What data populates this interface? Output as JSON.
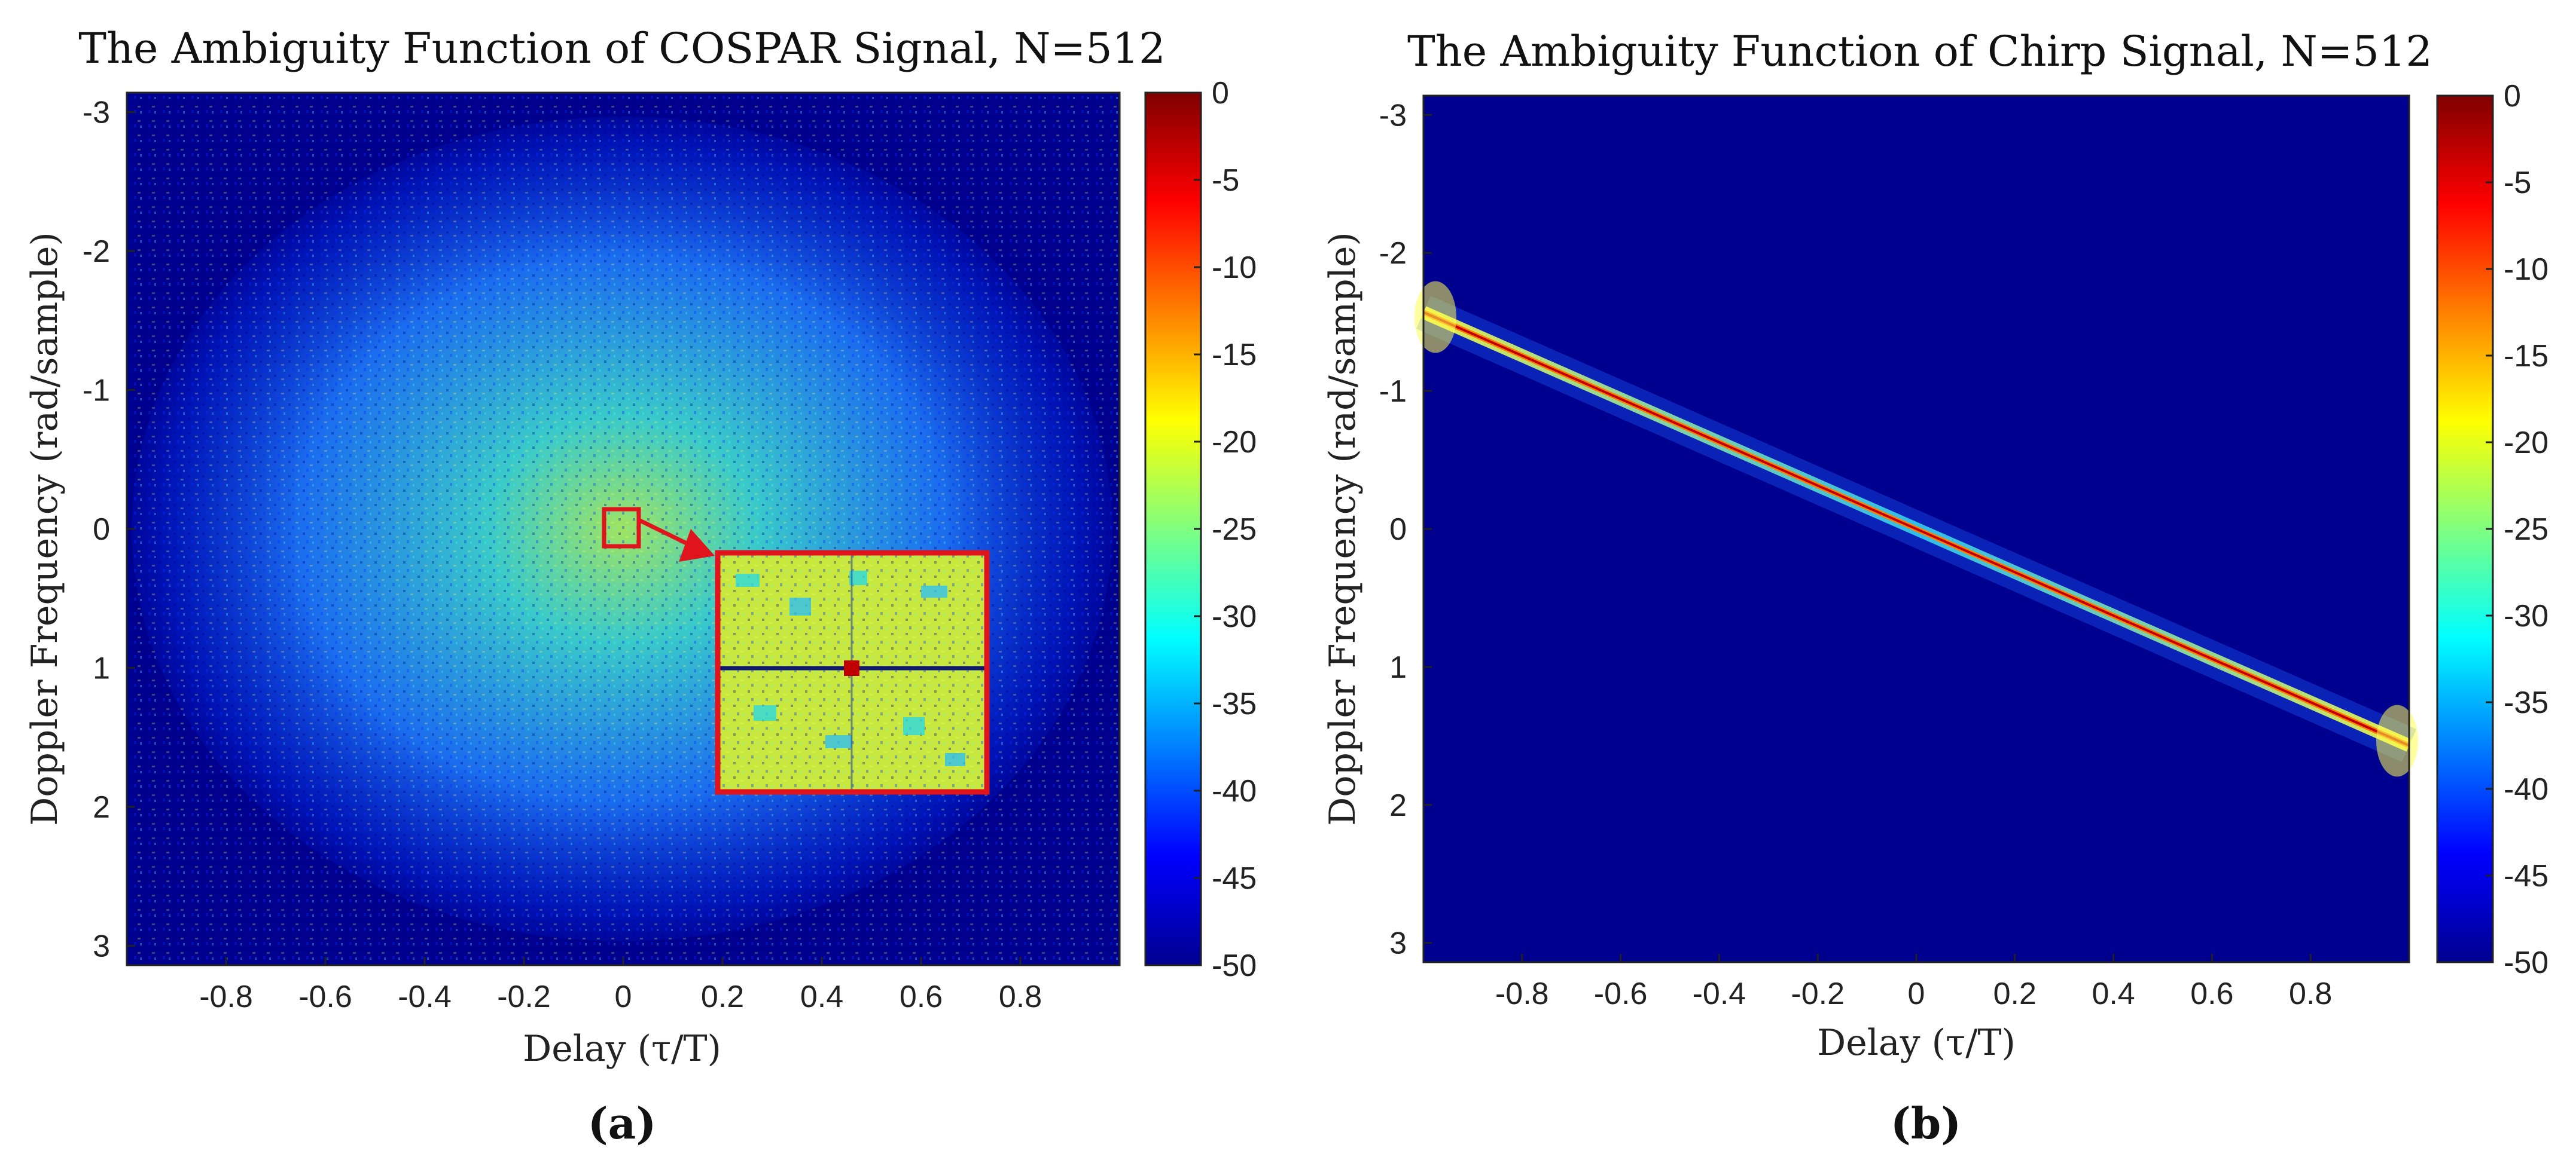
{
  "figure": {
    "panels": [
      {
        "title": "The Ambiguity Function of COSPAR Signal, N=512",
        "caption": "(a)",
        "colors": {
          "background": "#00008f",
          "inset_border": "#e0141c"
        }
      },
      {
        "title": "The Ambiguity Function of Chirp Signal, N=512",
        "caption": "(b)",
        "colors": {
          "background": "#00008f",
          "ridge": "#c00000"
        }
      }
    ]
  },
  "chart_data": [
    {
      "type": "heatmap",
      "title": "The Ambiguity Function of COSPAR Signal, N=512",
      "xlabel": "Delay (τ/T)",
      "ylabel": "Doppler Frequency (rad/sample)",
      "xlim": [
        -1,
        1
      ],
      "ylim": [
        -3.14,
        3.14
      ],
      "y_direction": "reversed",
      "xticks": [
        -0.8,
        -0.6,
        -0.4,
        -0.2,
        0,
        0.2,
        0.4,
        0.6,
        0.8
      ],
      "xtick_labels": [
        "-0.8",
        "-0.6",
        "-0.4",
        "-0.2",
        "0",
        "0.2",
        "0.4",
        "0.6",
        "0.8"
      ],
      "yticks": [
        -3,
        -2,
        -1,
        0,
        1,
        2,
        3
      ],
      "ytick_labels": [
        "-3",
        "-2",
        "-1",
        "0",
        "1",
        "2",
        "3"
      ],
      "colorbar": {
        "range": [
          -50,
          0
        ],
        "ticks": [
          0,
          -5,
          -10,
          -15,
          -20,
          -25,
          -30,
          -35,
          -40,
          -45,
          -50
        ],
        "tick_labels": [
          "0",
          "-5",
          "-10",
          "-15",
          "-20",
          "-25",
          "-30",
          "-35",
          "-40",
          "-45",
          "-50"
        ],
        "colormap": "jet"
      },
      "description": "thumbtack-like: sharp peak at (0,0) with noise-like sidelobes around -20 to -35 dB",
      "inset": {
        "zoom_center": [
          0,
          0
        ],
        "peak_dB": 0
      }
    },
    {
      "type": "heatmap",
      "title": "The Ambiguity Function of Chirp Signal, N=512",
      "xlabel": "Delay (τ/T)",
      "ylabel": "Doppler Frequency (rad/sample)",
      "xlim": [
        -1,
        1
      ],
      "ylim": [
        -3.14,
        3.14
      ],
      "y_direction": "reversed",
      "xticks": [
        -0.8,
        -0.6,
        -0.4,
        -0.2,
        0,
        0.2,
        0.4,
        0.6,
        0.8
      ],
      "xtick_labels": [
        "-0.8",
        "-0.6",
        "-0.4",
        "-0.2",
        "0",
        "0.2",
        "0.4",
        "0.6",
        "0.8"
      ],
      "yticks": [
        -3,
        -2,
        -1,
        0,
        1,
        2,
        3
      ],
      "ytick_labels": [
        "-3",
        "-2",
        "-1",
        "0",
        "1",
        "2",
        "3"
      ],
      "colorbar": {
        "range": [
          -50,
          0
        ],
        "ticks": [
          0,
          -5,
          -10,
          -15,
          -20,
          -25,
          -30,
          -35,
          -40,
          -45,
          -50
        ],
        "tick_labels": [
          "0",
          "-5",
          "-10",
          "-15",
          "-20",
          "-25",
          "-30",
          "-35",
          "-40",
          "-45",
          "-50"
        ],
        "colormap": "jet"
      },
      "ridge": {
        "from": [
          -1,
          -1.57
        ],
        "to": [
          1,
          1.57
        ],
        "peak_dB": 0
      }
    }
  ]
}
